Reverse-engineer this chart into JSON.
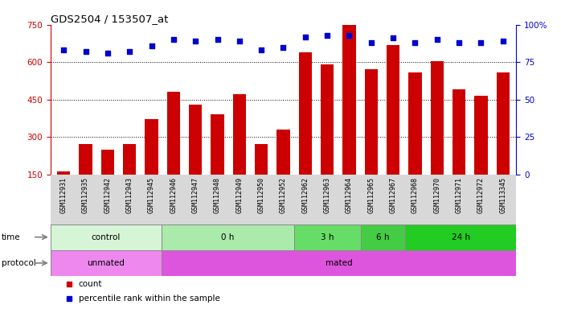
{
  "title": "GDS2504 / 153507_at",
  "samples": [
    "GSM112931",
    "GSM112935",
    "GSM112942",
    "GSM112943",
    "GSM112945",
    "GSM112946",
    "GSM112947",
    "GSM112948",
    "GSM112949",
    "GSM112950",
    "GSM112952",
    "GSM112962",
    "GSM112963",
    "GSM112964",
    "GSM112965",
    "GSM112967",
    "GSM112968",
    "GSM112970",
    "GSM112971",
    "GSM112972",
    "GSM113345"
  ],
  "counts": [
    160,
    270,
    250,
    270,
    370,
    480,
    430,
    390,
    470,
    270,
    330,
    640,
    590,
    750,
    570,
    670,
    560,
    605,
    490,
    465,
    560
  ],
  "percentiles": [
    83,
    82,
    81,
    82,
    86,
    90,
    89,
    90,
    89,
    83,
    85,
    92,
    93,
    93,
    88,
    91,
    88,
    90,
    88,
    88,
    89
  ],
  "bar_color": "#cc0000",
  "dot_color": "#0000cc",
  "ylim_left": [
    150,
    750
  ],
  "ylim_right": [
    0,
    100
  ],
  "yticks_left": [
    150,
    300,
    450,
    600,
    750
  ],
  "yticks_right": [
    0,
    25,
    50,
    75,
    100
  ],
  "bg_color": "#ffffff",
  "plot_bg": "#ffffff",
  "xtick_area_bg": "#d8d8d8",
  "time_groups": [
    {
      "label": "control",
      "start": 0,
      "end": 5,
      "color": "#d6f5d6"
    },
    {
      "label": "0 h",
      "start": 5,
      "end": 11,
      "color": "#aaeaaa"
    },
    {
      "label": "3 h",
      "start": 11,
      "end": 14,
      "color": "#66dd66"
    },
    {
      "label": "6 h",
      "start": 14,
      "end": 16,
      "color": "#44cc44"
    },
    {
      "label": "24 h",
      "start": 16,
      "end": 21,
      "color": "#22cc22"
    }
  ],
  "protocol_groups": [
    {
      "label": "unmated",
      "start": 0,
      "end": 5,
      "color": "#ee88ee"
    },
    {
      "label": "mated",
      "start": 5,
      "end": 21,
      "color": "#dd55dd"
    }
  ],
  "time_row_label": "time",
  "protocol_row_label": "protocol",
  "legend_count_label": "count",
  "legend_pct_label": "percentile rank within the sample"
}
